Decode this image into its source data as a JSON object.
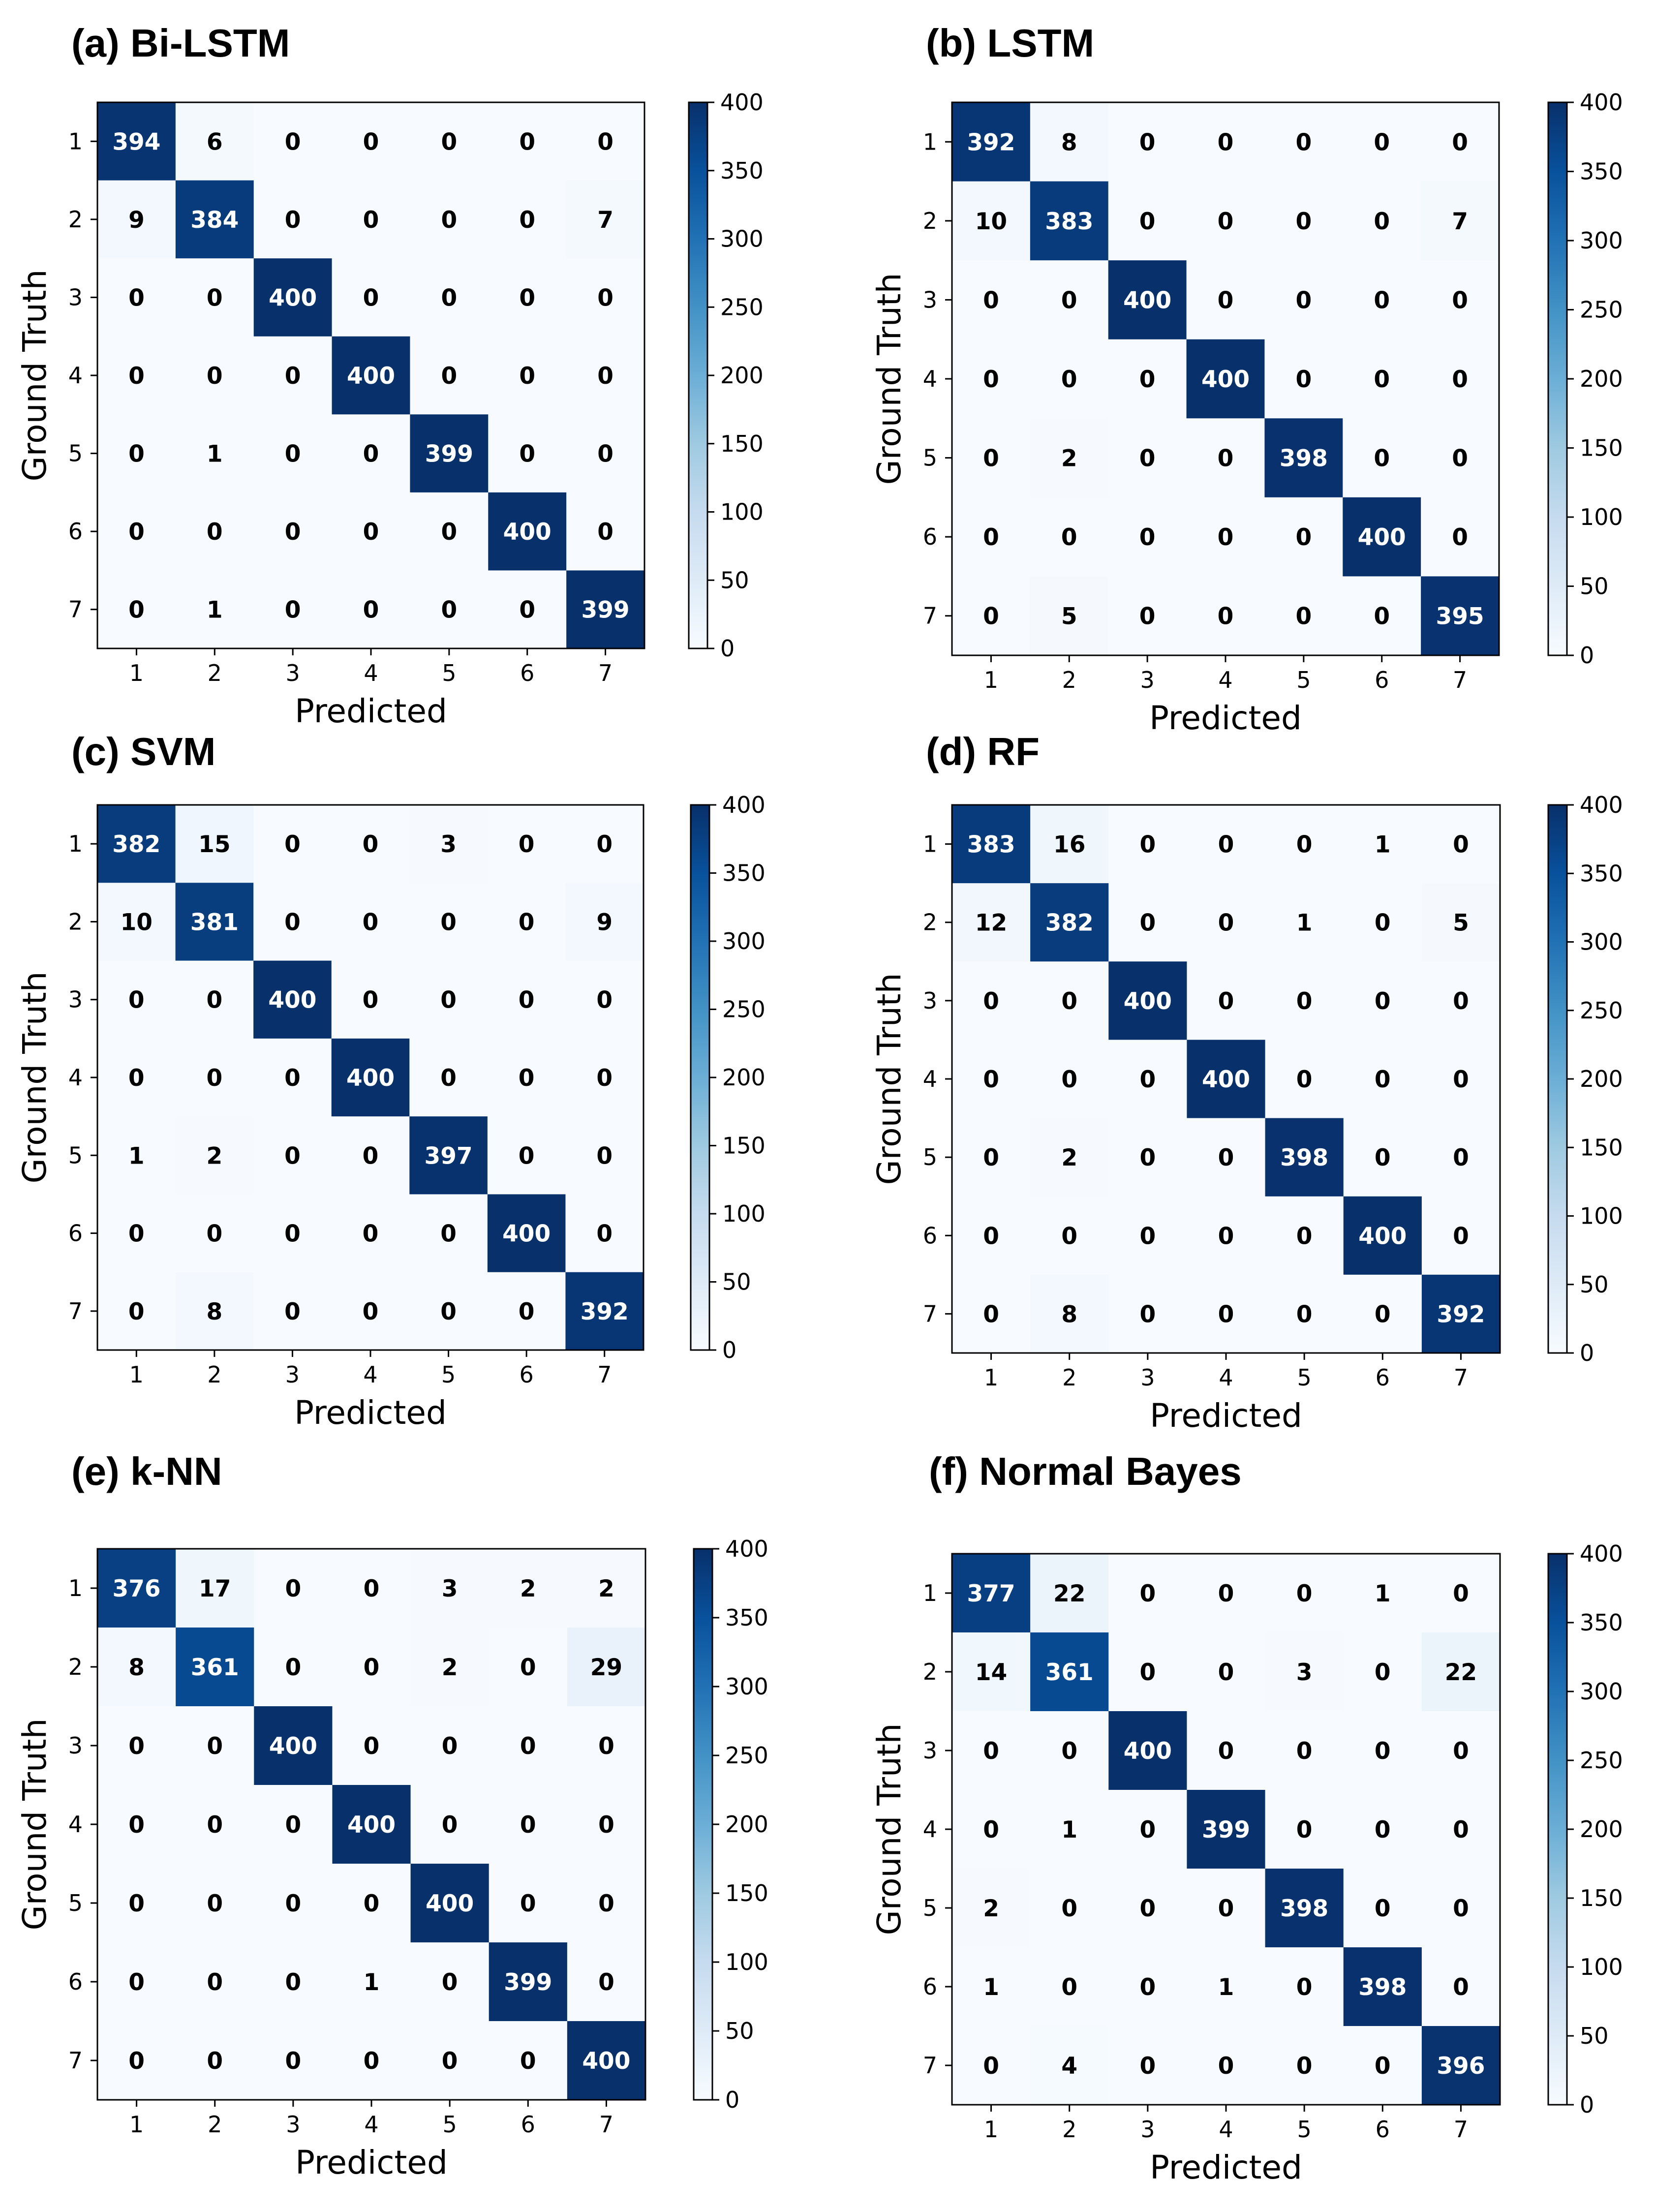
{
  "chart_data": [
    {
      "type": "heatmap",
      "title": "(a) Bi-LSTM",
      "xlabel": "Predicted",
      "ylabel": "Ground Truth",
      "x_categories": [
        "1",
        "2",
        "3",
        "4",
        "5",
        "6",
        "7"
      ],
      "y_categories": [
        "1",
        "2",
        "3",
        "4",
        "5",
        "6",
        "7"
      ],
      "values": [
        [
          394,
          6,
          0,
          0,
          0,
          0,
          0
        ],
        [
          9,
          384,
          0,
          0,
          0,
          0,
          7
        ],
        [
          0,
          0,
          400,
          0,
          0,
          0,
          0
        ],
        [
          0,
          0,
          0,
          400,
          0,
          0,
          0
        ],
        [
          0,
          1,
          0,
          0,
          399,
          0,
          0
        ],
        [
          0,
          0,
          0,
          0,
          0,
          400,
          0
        ],
        [
          0,
          1,
          0,
          0,
          0,
          0,
          399
        ]
      ],
      "colorbar": {
        "range": [
          0,
          400
        ],
        "ticks": [
          0,
          50,
          100,
          150,
          200,
          250,
          300,
          350,
          400
        ],
        "colormap": "Blues"
      }
    },
    {
      "type": "heatmap",
      "title": "(b) LSTM",
      "xlabel": "Predicted",
      "ylabel": "Ground Truth",
      "x_categories": [
        "1",
        "2",
        "3",
        "4",
        "5",
        "6",
        "7"
      ],
      "y_categories": [
        "1",
        "2",
        "3",
        "4",
        "5",
        "6",
        "7"
      ],
      "values": [
        [
          392,
          8,
          0,
          0,
          0,
          0,
          0
        ],
        [
          10,
          383,
          0,
          0,
          0,
          0,
          7
        ],
        [
          0,
          0,
          400,
          0,
          0,
          0,
          0
        ],
        [
          0,
          0,
          0,
          400,
          0,
          0,
          0
        ],
        [
          0,
          2,
          0,
          0,
          398,
          0,
          0
        ],
        [
          0,
          0,
          0,
          0,
          0,
          400,
          0
        ],
        [
          0,
          5,
          0,
          0,
          0,
          0,
          395
        ]
      ],
      "colorbar": {
        "range": [
          0,
          400
        ],
        "ticks": [
          0,
          50,
          100,
          150,
          200,
          250,
          300,
          350,
          400
        ],
        "colormap": "Blues"
      }
    },
    {
      "type": "heatmap",
      "title": "(c) SVM",
      "xlabel": "Predicted",
      "ylabel": "Ground Truth",
      "x_categories": [
        "1",
        "2",
        "3",
        "4",
        "5",
        "6",
        "7"
      ],
      "y_categories": [
        "1",
        "2",
        "3",
        "4",
        "5",
        "6",
        "7"
      ],
      "values": [
        [
          382,
          15,
          0,
          0,
          3,
          0,
          0
        ],
        [
          10,
          381,
          0,
          0,
          0,
          0,
          9
        ],
        [
          0,
          0,
          400,
          0,
          0,
          0,
          0
        ],
        [
          0,
          0,
          0,
          400,
          0,
          0,
          0
        ],
        [
          1,
          2,
          0,
          0,
          397,
          0,
          0
        ],
        [
          0,
          0,
          0,
          0,
          0,
          400,
          0
        ],
        [
          0,
          8,
          0,
          0,
          0,
          0,
          392
        ]
      ],
      "colorbar": {
        "range": [
          0,
          400
        ],
        "ticks": [
          0,
          50,
          100,
          150,
          200,
          250,
          300,
          350,
          400
        ],
        "colormap": "Blues"
      }
    },
    {
      "type": "heatmap",
      "title": "(d) RF",
      "xlabel": "Predicted",
      "ylabel": "Ground Truth",
      "x_categories": [
        "1",
        "2",
        "3",
        "4",
        "5",
        "6",
        "7"
      ],
      "y_categories": [
        "1",
        "2",
        "3",
        "4",
        "5",
        "6",
        "7"
      ],
      "values": [
        [
          383,
          16,
          0,
          0,
          0,
          1,
          0
        ],
        [
          12,
          382,
          0,
          0,
          1,
          0,
          5
        ],
        [
          0,
          0,
          400,
          0,
          0,
          0,
          0
        ],
        [
          0,
          0,
          0,
          400,
          0,
          0,
          0
        ],
        [
          0,
          2,
          0,
          0,
          398,
          0,
          0
        ],
        [
          0,
          0,
          0,
          0,
          0,
          400,
          0
        ],
        [
          0,
          8,
          0,
          0,
          0,
          0,
          392
        ]
      ],
      "colorbar": {
        "range": [
          0,
          400
        ],
        "ticks": [
          0,
          50,
          100,
          150,
          200,
          250,
          300,
          350,
          400
        ],
        "colormap": "Blues"
      }
    },
    {
      "type": "heatmap",
      "title": "(e) k-NN",
      "xlabel": "Predicted",
      "ylabel": "Ground Truth",
      "x_categories": [
        "1",
        "2",
        "3",
        "4",
        "5",
        "6",
        "7"
      ],
      "y_categories": [
        "1",
        "2",
        "3",
        "4",
        "5",
        "6",
        "7"
      ],
      "values": [
        [
          376,
          17,
          0,
          0,
          3,
          2,
          2
        ],
        [
          8,
          361,
          0,
          0,
          2,
          0,
          29
        ],
        [
          0,
          0,
          400,
          0,
          0,
          0,
          0
        ],
        [
          0,
          0,
          0,
          400,
          0,
          0,
          0
        ],
        [
          0,
          0,
          0,
          0,
          400,
          0,
          0
        ],
        [
          0,
          0,
          0,
          1,
          0,
          399,
          0
        ],
        [
          0,
          0,
          0,
          0,
          0,
          0,
          400
        ]
      ],
      "colorbar": {
        "range": [
          0,
          400
        ],
        "ticks": [
          0,
          50,
          100,
          150,
          200,
          250,
          300,
          350,
          400
        ],
        "colormap": "Blues"
      }
    },
    {
      "type": "heatmap",
      "title": "(f) Normal Bayes",
      "xlabel": "Predicted",
      "ylabel": "Ground Truth",
      "x_categories": [
        "1",
        "2",
        "3",
        "4",
        "5",
        "6",
        "7"
      ],
      "y_categories": [
        "1",
        "2",
        "3",
        "4",
        "5",
        "6",
        "7"
      ],
      "values": [
        [
          377,
          22,
          0,
          0,
          0,
          1,
          0
        ],
        [
          14,
          361,
          0,
          0,
          3,
          0,
          22
        ],
        [
          0,
          0,
          400,
          0,
          0,
          0,
          0
        ],
        [
          0,
          1,
          0,
          399,
          0,
          0,
          0
        ],
        [
          2,
          0,
          0,
          0,
          398,
          0,
          0
        ],
        [
          1,
          0,
          0,
          1,
          0,
          398,
          0
        ],
        [
          0,
          4,
          0,
          0,
          0,
          0,
          396
        ]
      ],
      "colorbar": {
        "range": [
          0,
          400
        ],
        "ticks": [
          0,
          50,
          100,
          150,
          200,
          250,
          300,
          350,
          400
        ],
        "colormap": "Blues"
      }
    }
  ]
}
